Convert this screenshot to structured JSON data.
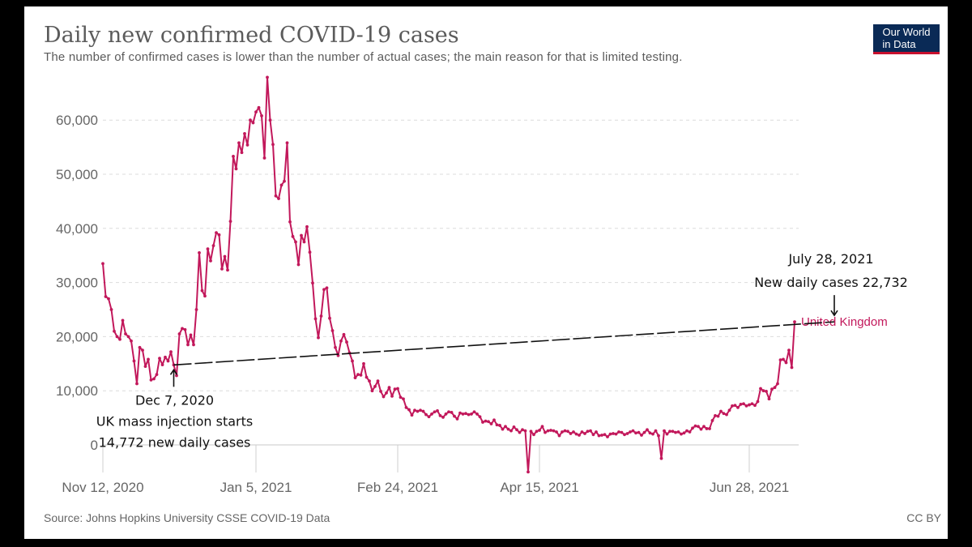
{
  "logo": {
    "line1": "Our World",
    "line2": "in Data",
    "bg_color": "#0a2a56",
    "accent_color": "#c8102e"
  },
  "source": "Source: Johns Hopkins University CSSE COVID-19 Data",
  "license": "CC BY",
  "chart_data": {
    "type": "line",
    "title": "Daily new confirmed COVID-19 cases",
    "subtitle": "The number of confirmed cases is lower than the number of actual cases; the main reason for that is limited testing.",
    "xlabel": "",
    "ylabel": "",
    "ylim": [
      -5000,
      68000
    ],
    "grid": true,
    "x_start": "Nov 12, 2020",
    "x_end": "Jul 28, 2021",
    "x_ticks": [
      {
        "day": 0,
        "label": "Nov 12, 2020"
      },
      {
        "day": 54,
        "label": "Jan 5, 2021"
      },
      {
        "day": 104,
        "label": "Feb 24, 2021"
      },
      {
        "day": 154,
        "label": "Apr 15, 2021"
      },
      {
        "day": 228,
        "label": "Jun 28, 2021"
      }
    ],
    "y_ticks": [
      {
        "value": 0,
        "label": "0"
      },
      {
        "value": 10000,
        "label": "10,000"
      },
      {
        "value": 20000,
        "label": "20,000"
      },
      {
        "value": 30000,
        "label": "30,000"
      },
      {
        "value": 40000,
        "label": "40,000"
      },
      {
        "value": 50000,
        "label": "50,000"
      },
      {
        "value": 60000,
        "label": "60,000"
      }
    ],
    "series": [
      {
        "name": "United Kingdom",
        "color": "#c2185b",
        "values": [
          33500,
          27400,
          27000,
          25000,
          21000,
          20000,
          19500,
          23000,
          20500,
          20000,
          19200,
          15500,
          11300,
          18000,
          17500,
          14500,
          15800,
          12000,
          12200,
          13000,
          16000,
          14800,
          16200,
          15500,
          17200,
          14772,
          12800,
          20500,
          21500,
          21300,
          18500,
          20300,
          18500,
          25000,
          35500,
          28500,
          27500,
          36200,
          34000,
          36800,
          39200,
          38800,
          32500,
          34800,
          32300,
          41300,
          53300,
          51000,
          55800,
          54000,
          57500,
          55400,
          60000,
          59500,
          61500,
          62300,
          60800,
          53000,
          67900,
          60000,
          55500,
          46000,
          45500,
          48000,
          48700,
          55800,
          41200,
          38500,
          37500,
          33300,
          38700,
          37500,
          40300,
          35600,
          29900,
          23300,
          19800,
          23800,
          28700,
          29000,
          23400,
          21100,
          18000,
          16500,
          19200,
          20400,
          19000,
          17000,
          15500,
          12400,
          13000,
          12900,
          15000,
          12500,
          11800,
          10000,
          10800,
          11800,
          9900,
          8900,
          9600,
          10600,
          9000,
          10300,
          10400,
          8800,
          8500,
          6900,
          6500,
          5500,
          6400,
          6200,
          6400,
          6200,
          5600,
          5200,
          5700,
          6100,
          6300,
          5400,
          5100,
          5700,
          6100,
          6000,
          5300,
          4800,
          5900,
          5700,
          5800,
          5600,
          5700,
          6100,
          5700,
          5200,
          4200,
          4400,
          4300,
          3900,
          4600,
          3700,
          3600,
          2900,
          3400,
          2900,
          2600,
          3300,
          2800,
          2300,
          2800,
          2600,
          -5000,
          2500,
          1900,
          2500,
          2700,
          3400,
          2300,
          2600,
          2700,
          2600,
          2400,
          1700,
          2400,
          2600,
          2500,
          2100,
          2400,
          2000,
          1800,
          2400,
          2100,
          2500,
          2600,
          1900,
          2400,
          1700,
          1800,
          1900,
          1500,
          2000,
          2100,
          2000,
          2400,
          2300,
          1900,
          2100,
          2400,
          2600,
          2200,
          2300,
          1800,
          2300,
          2800,
          2200,
          2000,
          2600,
          1700,
          -2500,
          2600,
          2000,
          2500,
          2500,
          2300,
          2400,
          2000,
          2200,
          2600,
          2400,
          3100,
          3500,
          3400,
          2900,
          3400,
          3000,
          3000,
          4500,
          5400,
          5300,
          6200,
          5800,
          5600,
          6400,
          7200,
          7300,
          6900,
          7500,
          7600,
          7200,
          7400,
          7600,
          7300,
          8000,
          10400,
          10000,
          9900,
          8500,
          10300,
          10600,
          11300,
          15700,
          15800,
          15200,
          17500,
          14300,
          22732
        ]
      }
    ],
    "annotations": [
      {
        "id": "start",
        "day": 25,
        "value": 14772,
        "lines": [
          "Dec 7, 2020",
          "UK mass injection starts",
          "14,772 new daily cases"
        ],
        "arrow": "up"
      },
      {
        "id": "end",
        "day": 258,
        "value": 22732,
        "lines": [
          "July 28, 2021",
          "New daily cases 22,732"
        ],
        "arrow": "down"
      }
    ],
    "trend_line": {
      "from_day": 25,
      "from_value": 14772,
      "to_day": 258,
      "to_value": 22732,
      "style": "dashed"
    }
  }
}
